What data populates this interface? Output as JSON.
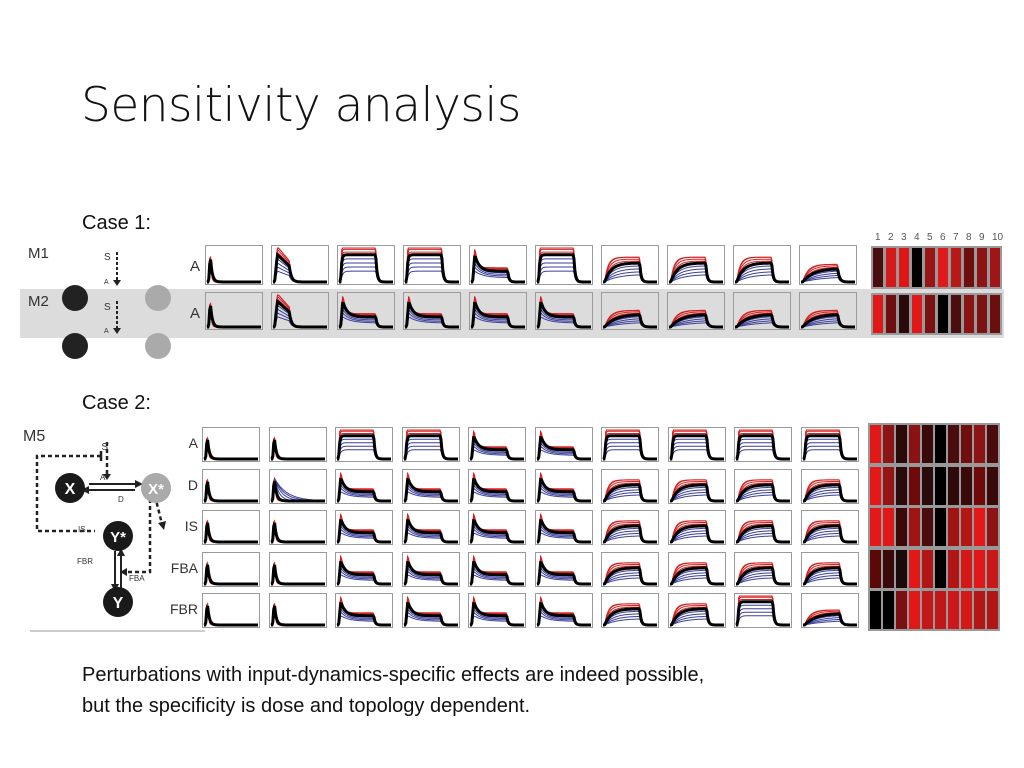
{
  "title": "Sensitivity analysis",
  "case1": {
    "label": "Case 1:",
    "models": [
      {
        "name": "M1",
        "input": "S",
        "arrow": "A",
        "row_label": "A",
        "shaded": false,
        "shapes": [
          "spike",
          "peak",
          "pulse",
          "pulse",
          "adapt",
          "pulse",
          "ramp",
          "ramp",
          "ramp",
          "bump"
        ],
        "heat": [
          "#4a0c0c",
          "#d41a1a",
          "#e01616",
          "#000000",
          "#9a1616",
          "#e01a1a",
          "#b81818",
          "#6e0e0e",
          "#8c1414",
          "#a01616"
        ]
      },
      {
        "name": "M2",
        "input": "S",
        "arrow": "A",
        "row_label": "A",
        "shaded": true,
        "shapes": [
          "spike",
          "peak",
          "adapt",
          "adapt",
          "adapt",
          "adapt",
          "bump",
          "bump",
          "bump",
          "bump"
        ],
        "heat": [
          "#e01818",
          "#6e0e0e",
          "#2a0a0a",
          "#e01818",
          "#7a1010",
          "#000000",
          "#4a0e0e",
          "#8a1414",
          "#7c1212",
          "#6a0e0e"
        ]
      }
    ],
    "heat_columns": [
      "1",
      "2",
      "3",
      "4",
      "5",
      "6",
      "7",
      "8",
      "9",
      "10"
    ]
  },
  "case2": {
    "label": "Case 2:",
    "model": "M5",
    "diagram": {
      "S": "S",
      "A": "A",
      "D": "D",
      "IS": "IS",
      "FBR": "FBR",
      "FBA": "FBA",
      "X": "X",
      "Xs": "X*",
      "Ys": "Y*",
      "Y": "Y"
    },
    "rows": [
      {
        "label": "A",
        "shapes": [
          "spike",
          "spike",
          "pulse",
          "pulse",
          "adapt",
          "adapt",
          "pulse",
          "pulse",
          "pulse",
          "pulse"
        ],
        "heat": [
          "#e01818",
          "#8c1414",
          "#2a0a0a",
          "#8a1212",
          "#3a0a0a",
          "#000000",
          "#4a0c0c",
          "#6e0e0e",
          "#8c1414",
          "#4a0c0c"
        ]
      },
      {
        "label": "D",
        "shapes": [
          "spike",
          "fan",
          "adapt",
          "adapt",
          "adapt",
          "adapt",
          "ramp",
          "ramp",
          "ramp",
          "ramp"
        ],
        "heat": [
          "#e41818",
          "#961414",
          "#2a0a0a",
          "#6e0a0a",
          "#2a0a0a",
          "#000000",
          "#2e0a0a",
          "#3a0a0a",
          "#6e0a0a",
          "#3a0a0a"
        ]
      },
      {
        "label": "IS",
        "shapes": [
          "spike",
          "spike",
          "adapt",
          "adapt",
          "adapt",
          "adapt",
          "ramp",
          "ramp",
          "ramp",
          "ramp"
        ],
        "heat": [
          "#e41818",
          "#e01818",
          "#3a0a0a",
          "#a01414",
          "#4a0c0c",
          "#000000",
          "#a01414",
          "#b41616",
          "#e41818",
          "#8c1414"
        ]
      },
      {
        "label": "FBA",
        "shapes": [
          "spike",
          "spike",
          "adapt",
          "adapt",
          "adapt",
          "adapt",
          "ramp",
          "ramp",
          "ramp",
          "ramp"
        ],
        "heat": [
          "#5a0808",
          "#3a0a0a",
          "#1a0a0a",
          "#e01818",
          "#b01616",
          "#000000",
          "#b01616",
          "#d41818",
          "#e01818",
          "#c81818"
        ]
      },
      {
        "label": "FBR",
        "shapes": [
          "spike",
          "spike",
          "adapt",
          "adapt",
          "adapt",
          "adapt",
          "ramp",
          "ramp",
          "pulse",
          "bump"
        ],
        "heat": [
          "#000000",
          "#000000",
          "#7a1010",
          "#e01818",
          "#c41818",
          "#c01818",
          "#cc1818",
          "#d41818",
          "#b41616",
          "#b01616"
        ]
      }
    ]
  },
  "conclusion": [
    "Perturbations with input-dynamics-specific effects are indeed possible,",
    "but the specificity is dose and topology dependent."
  ],
  "colors": {
    "up": "#d42020",
    "down": "#3a3f9a",
    "main": "#000000",
    "frame": "#9a9a9a",
    "shade": "#dcdcdc"
  }
}
